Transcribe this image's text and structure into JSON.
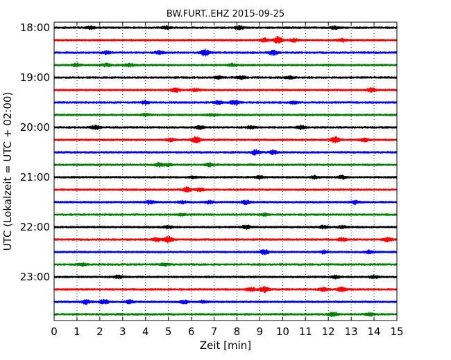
{
  "chart_data": {
    "type": "line",
    "title": "BW.FURT..EHZ 2015-09-25",
    "xlabel": "Zeit  [min]",
    "ylabel": "UTC (Lokalzeit = UTC + 02:00)",
    "xlim": [
      0,
      15
    ],
    "x_ticks": [
      "0",
      "1",
      "2",
      "3",
      "4",
      "5",
      "6",
      "7",
      "8",
      "9",
      "10",
      "11",
      "12",
      "13",
      "14",
      "15"
    ],
    "y_ticks": [
      "18:00",
      "19:00",
      "20:00",
      "21:00",
      "22:00",
      "23:00"
    ],
    "grid": "vertical dotted",
    "trace_interval_min": 15,
    "colors": [
      "#000000",
      "#ff0000",
      "#0000ff",
      "#008000"
    ],
    "series": [
      {
        "start": "18:00",
        "color": "#000000",
        "events": [
          [
            1.6,
            1.8
          ],
          [
            4.9,
            2.0
          ],
          [
            8.1,
            2.2
          ],
          [
            12.3,
            2.0
          ]
        ]
      },
      {
        "start": "18:15",
        "color": "#ff0000",
        "events": [
          [
            9.8,
            4.5
          ],
          [
            9.2,
            2.5
          ],
          [
            10.5,
            2.0
          ],
          [
            12.6,
            2.0
          ]
        ]
      },
      {
        "start": "18:30",
        "color": "#0000ff",
        "events": [
          [
            6.6,
            4.0
          ],
          [
            9.6,
            3.0
          ],
          [
            4.6,
            2.0
          ],
          [
            2.3,
            1.8
          ]
        ]
      },
      {
        "start": "18:45",
        "color": "#008000",
        "events": [
          [
            1.0,
            2.2
          ],
          [
            2.3,
            2.0
          ],
          [
            3.3,
            2.0
          ],
          [
            7.8,
            1.6
          ]
        ]
      },
      {
        "start": "19:00",
        "color": "#000000",
        "events": [
          [
            8.2,
            2.0
          ],
          [
            7.2,
            1.6
          ],
          [
            10.3,
            1.6
          ]
        ]
      },
      {
        "start": "19:15",
        "color": "#ff0000",
        "events": [
          [
            5.3,
            3.0
          ],
          [
            13.9,
            2.6
          ],
          [
            6.2,
            2.0
          ]
        ]
      },
      {
        "start": "19:30",
        "color": "#0000ff",
        "events": [
          [
            7.9,
            3.0
          ],
          [
            7.2,
            2.0
          ],
          [
            4.0,
            1.8
          ],
          [
            10.5,
            1.6
          ]
        ]
      },
      {
        "start": "19:45",
        "color": "#008000",
        "events": [
          [
            4.0,
            1.6
          ],
          [
            6.9,
            1.6
          ]
        ]
      },
      {
        "start": "20:00",
        "color": "#000000",
        "events": [
          [
            1.8,
            2.6
          ],
          [
            6.4,
            2.2
          ],
          [
            10.8,
            2.4
          ],
          [
            8.6,
            1.6
          ]
        ]
      },
      {
        "start": "20:15",
        "color": "#ff0000",
        "events": [
          [
            6.2,
            4.0
          ],
          [
            12.3,
            4.0
          ],
          [
            13.6,
            2.4
          ],
          [
            5.1,
            2.0
          ]
        ]
      },
      {
        "start": "20:30",
        "color": "#0000ff",
        "events": [
          [
            8.8,
            3.2
          ],
          [
            9.6,
            2.4
          ]
        ]
      },
      {
        "start": "20:45",
        "color": "#008000",
        "events": [
          [
            4.6,
            2.2
          ],
          [
            6.8,
            2.0
          ],
          [
            5.0,
            1.6
          ]
        ]
      },
      {
        "start": "21:00",
        "color": "#000000",
        "events": [
          [
            9.0,
            2.0
          ],
          [
            11.4,
            1.8
          ],
          [
            12.6,
            2.0
          ],
          [
            6.1,
            1.6
          ]
        ]
      },
      {
        "start": "21:15",
        "color": "#ff0000",
        "events": [
          [
            5.8,
            3.0
          ],
          [
            6.4,
            1.6
          ]
        ]
      },
      {
        "start": "21:30",
        "color": "#0000ff",
        "events": [
          [
            4.2,
            2.4
          ],
          [
            5.6,
            1.8
          ],
          [
            6.8,
            2.0
          ],
          [
            8.4,
            2.4
          ],
          [
            13.2,
            2.0
          ]
        ]
      },
      {
        "start": "21:45",
        "color": "#008000",
        "events": [
          [
            5.6,
            1.6
          ],
          [
            9.2,
            1.6
          ]
        ]
      },
      {
        "start": "22:00",
        "color": "#000000",
        "events": [
          [
            8.4,
            2.6
          ],
          [
            5.0,
            2.0
          ],
          [
            11.8,
            2.0
          ],
          [
            12.6,
            1.6
          ]
        ]
      },
      {
        "start": "22:15",
        "color": "#ff0000",
        "events": [
          [
            5.0,
            4.0
          ],
          [
            4.5,
            2.4
          ],
          [
            14.6,
            2.4
          ],
          [
            12.6,
            2.2
          ]
        ]
      },
      {
        "start": "22:30",
        "color": "#0000ff",
        "events": [
          [
            9.2,
            3.0
          ],
          [
            13.8,
            2.2
          ],
          [
            11.8,
            1.8
          ]
        ]
      },
      {
        "start": "22:45",
        "color": "#008000",
        "events": [
          [
            1.2,
            1.8
          ],
          [
            4.8,
            1.6
          ]
        ]
      },
      {
        "start": "23:00",
        "color": "#000000",
        "events": [
          [
            2.8,
            2.0
          ],
          [
            12.3,
            1.8
          ],
          [
            14.0,
            1.8
          ]
        ]
      },
      {
        "start": "23:15",
        "color": "#ff0000",
        "events": [
          [
            9.2,
            4.0
          ],
          [
            8.6,
            2.6
          ],
          [
            12.6,
            3.0
          ],
          [
            11.8,
            2.4
          ]
        ]
      },
      {
        "start": "23:30",
        "color": "#0000ff",
        "events": [
          [
            1.4,
            3.0
          ],
          [
            2.2,
            2.6
          ],
          [
            3.3,
            2.2
          ],
          [
            5.7,
            2.2
          ],
          [
            6.5,
            1.8
          ]
        ]
      },
      {
        "start": "23:45",
        "color": "#008000",
        "events": [
          [
            12.2,
            3.0
          ],
          [
            13.8,
            2.0
          ]
        ]
      }
    ]
  }
}
